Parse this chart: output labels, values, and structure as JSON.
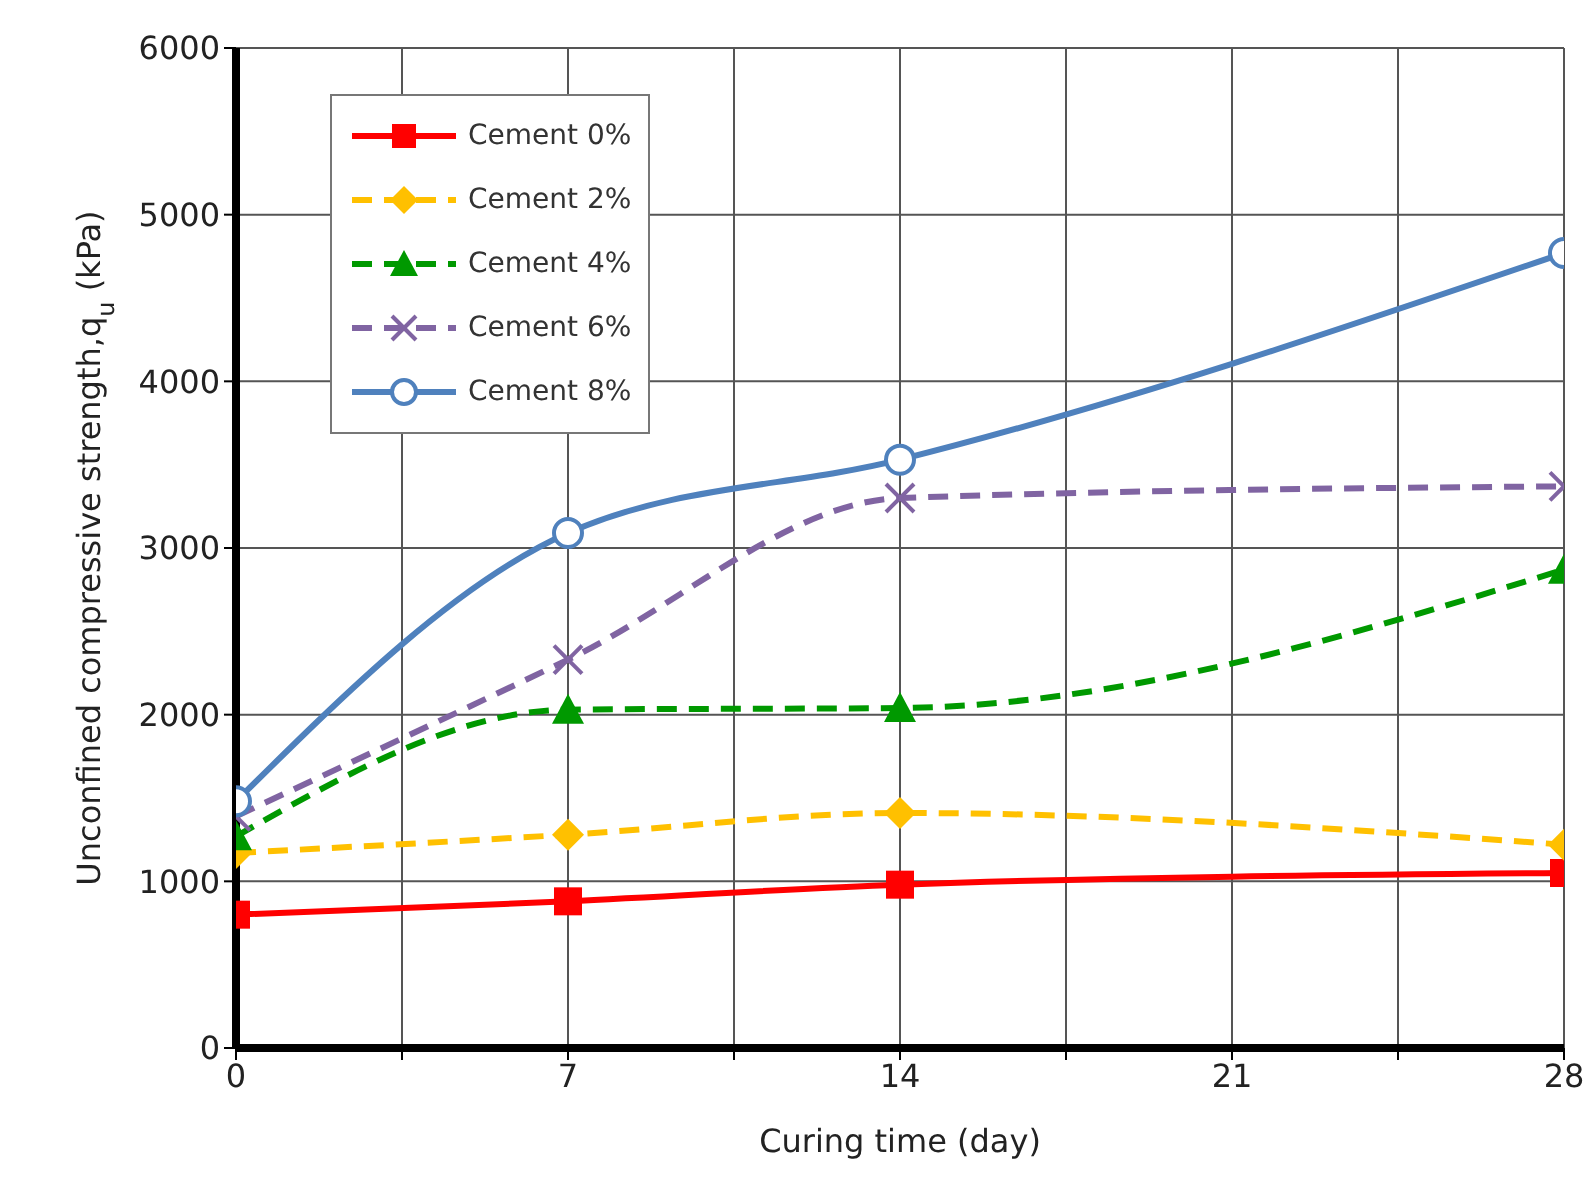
{
  "chart_data": {
    "type": "line",
    "xlabel": "Curing time (day)",
    "ylabel": "Unconfined compressive strength,q$_{u}$ (kPa)",
    "x": [
      0,
      7,
      14,
      28
    ],
    "xlim": [
      0,
      28
    ],
    "xticks": [
      0,
      {
        "value": 3.5,
        "label": null
      },
      7,
      {
        "value": 10.5,
        "label": null
      },
      14,
      {
        "value": 17.5,
        "label": null
      },
      21,
      {
        "value": 24.5,
        "label": null
      },
      28
    ],
    "ylim": [
      0,
      6000
    ],
    "yticks": [
      0,
      1000,
      2000,
      3000,
      4000,
      5000,
      6000
    ],
    "grid": true,
    "legend": "top left",
    "series": [
      {
        "name": "Cement 0%",
        "color": "#ff0000",
        "values": [
          800,
          880,
          980,
          1050
        ],
        "marker": "square",
        "line_style": "solid"
      },
      {
        "name": "Cement 2%",
        "color": "#ffc000",
        "values": [
          1170,
          1280,
          1410,
          1220
        ],
        "marker": "diamond",
        "line_style": "dashed"
      },
      {
        "name": "Cement 4%",
        "color": "#009900",
        "values": [
          1270,
          2030,
          2040,
          2870
        ],
        "marker": "triangle",
        "line_style": "dashed"
      },
      {
        "name": "Cement 6%",
        "color": "#8064a2",
        "values": [
          1390,
          2330,
          3300,
          3370
        ],
        "marker": "cross",
        "line_style": "dashed"
      },
      {
        "name": "Cement 8%",
        "color": "#4f81bd",
        "values": [
          1480,
          3090,
          3530,
          4770
        ],
        "marker": "circle",
        "line_style": "solid"
      }
    ]
  }
}
